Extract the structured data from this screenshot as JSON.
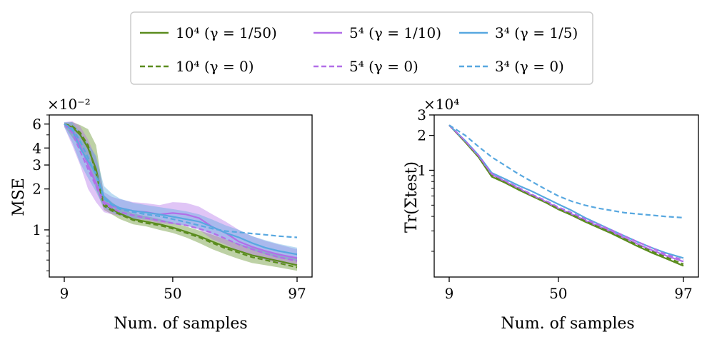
{
  "colors": {
    "green": "#5b8c1f",
    "purple": "#b26ee8",
    "blue": "#58a8e0"
  },
  "legend": {
    "items": [
      {
        "label": "10⁴ (γ = 1/50)",
        "color": "green",
        "dash": false
      },
      {
        "label": "5⁴ (γ = 1/10)",
        "color": "purple",
        "dash": false
      },
      {
        "label": "3⁴ (γ = 1/5)",
        "color": "blue",
        "dash": false
      },
      {
        "label": "10⁴ (γ = 0)",
        "color": "green",
        "dash": true
      },
      {
        "label": "5⁴ (γ = 0)",
        "color": "purple",
        "dash": true
      },
      {
        "label": "3⁴ (γ = 0)",
        "color": "blue",
        "dash": true
      }
    ]
  },
  "chart_data": [
    {
      "type": "line",
      "ylabel": "MSE",
      "xlabel": "Num. of samples",
      "y_multiplier": "×10⁻²",
      "yscale": "log",
      "xlim": [
        9,
        97
      ],
      "ylim": [
        0.45,
        7.0
      ],
      "xticks": [
        {
          "value": 9,
          "label": "9"
        },
        {
          "value": 50,
          "label": "50"
        },
        {
          "value": 97,
          "label": "97"
        }
      ],
      "yticks": [
        {
          "value": 1,
          "label": "1"
        },
        {
          "value": 2,
          "label": "2"
        },
        {
          "value": 3,
          "label": "3"
        },
        {
          "value": 4,
          "label": "4"
        },
        {
          "value": 6,
          "label": "6"
        }
      ],
      "yminor": [
        0.5,
        0.6,
        0.7,
        0.8,
        0.9,
        5,
        7
      ],
      "x": [
        9,
        12,
        15,
        18,
        21,
        24,
        27,
        30,
        35,
        40,
        45,
        50,
        55,
        60,
        65,
        70,
        75,
        80,
        85,
        90,
        97
      ],
      "series": [
        {
          "legend_index": 0,
          "color": "green",
          "dash": false,
          "values": [
            6.0,
            5.7,
            5.0,
            4.0,
            2.8,
            1.55,
            1.42,
            1.32,
            1.2,
            1.15,
            1.1,
            1.04,
            0.97,
            0.9,
            0.82,
            0.75,
            0.7,
            0.65,
            0.62,
            0.59,
            0.55
          ],
          "band_lower": [
            5.8,
            4.8,
            4.0,
            3.0,
            2.0,
            1.4,
            1.3,
            1.2,
            1.1,
            1.06,
            1.0,
            0.95,
            0.88,
            0.8,
            0.72,
            0.66,
            0.61,
            0.57,
            0.55,
            0.53,
            0.5
          ],
          "band_upper": [
            6.1,
            6.2,
            5.9,
            5.5,
            4.2,
            1.8,
            1.6,
            1.45,
            1.32,
            1.26,
            1.2,
            1.13,
            1.06,
            0.99,
            0.92,
            0.85,
            0.79,
            0.74,
            0.7,
            0.67,
            0.62
          ]
        },
        {
          "legend_index": 1,
          "color": "purple",
          "dash": false,
          "values": [
            6.0,
            5.5,
            4.2,
            3.0,
            2.2,
            1.6,
            1.5,
            1.45,
            1.38,
            1.35,
            1.3,
            1.33,
            1.3,
            1.22,
            1.05,
            0.95,
            0.82,
            0.75,
            0.7,
            0.66,
            0.62
          ],
          "band_lower": [
            5.7,
            4.2,
            3.0,
            2.0,
            1.6,
            1.35,
            1.3,
            1.27,
            1.2,
            1.18,
            1.12,
            1.1,
            1.08,
            1.0,
            0.85,
            0.78,
            0.7,
            0.65,
            0.6,
            0.57,
            0.55
          ],
          "band_upper": [
            6.2,
            6.3,
            5.8,
            4.6,
            3.4,
            1.9,
            1.75,
            1.68,
            1.6,
            1.57,
            1.52,
            1.6,
            1.58,
            1.48,
            1.3,
            1.15,
            1.0,
            0.9,
            0.83,
            0.78,
            0.72
          ]
        },
        {
          "legend_index": 2,
          "color": "blue",
          "dash": false,
          "values": [
            6.0,
            5.4,
            4.0,
            3.2,
            2.6,
            1.75,
            1.55,
            1.45,
            1.38,
            1.34,
            1.3,
            1.25,
            1.2,
            1.15,
            1.05,
            0.95,
            0.88,
            0.8,
            0.74,
            0.7,
            0.66
          ],
          "band_lower": [
            5.7,
            4.4,
            3.1,
            2.4,
            1.9,
            1.45,
            1.35,
            1.28,
            1.22,
            1.2,
            1.16,
            1.12,
            1.07,
            1.02,
            0.93,
            0.85,
            0.78,
            0.71,
            0.66,
            0.62,
            0.59
          ],
          "band_upper": [
            6.2,
            6.2,
            5.2,
            4.3,
            3.5,
            2.1,
            1.85,
            1.7,
            1.58,
            1.52,
            1.47,
            1.42,
            1.37,
            1.3,
            1.19,
            1.08,
            1.0,
            0.9,
            0.84,
            0.79,
            0.74
          ]
        },
        {
          "legend_index": 3,
          "color": "green",
          "dash": true,
          "values": [
            6.0,
            5.8,
            5.2,
            4.2,
            2.6,
            1.5,
            1.38,
            1.3,
            1.18,
            1.12,
            1.08,
            1.02,
            0.95,
            0.88,
            0.8,
            0.73,
            0.68,
            0.63,
            0.6,
            0.57,
            0.53
          ]
        },
        {
          "legend_index": 4,
          "color": "purple",
          "dash": true,
          "values": [
            6.0,
            5.2,
            3.8,
            2.8,
            2.1,
            1.55,
            1.45,
            1.35,
            1.28,
            1.22,
            1.17,
            1.12,
            1.08,
            1.02,
            0.95,
            0.86,
            0.78,
            0.72,
            0.67,
            0.63,
            0.59
          ]
        },
        {
          "legend_index": 5,
          "color": "blue",
          "dash": true,
          "values": [
            6.0,
            5.6,
            4.5,
            3.4,
            2.5,
            1.7,
            1.52,
            1.42,
            1.35,
            1.3,
            1.26,
            1.2,
            1.14,
            1.08,
            1.02,
            0.98,
            0.96,
            0.94,
            0.92,
            0.9,
            0.88
          ]
        }
      ]
    },
    {
      "type": "line",
      "ylabel": "Tr(Σtest)",
      "xlabel": "Num. of samples",
      "y_multiplier": "×10⁴",
      "yscale": "log",
      "xlim": [
        9,
        97
      ],
      "ylim": [
        0.12,
        3.0
      ],
      "xticks": [
        {
          "value": 9,
          "label": "9"
        },
        {
          "value": 50,
          "label": "50"
        },
        {
          "value": 97,
          "label": "97"
        }
      ],
      "yticks": [
        {
          "value": 1,
          "label": "1"
        },
        {
          "value": 2,
          "label": "2"
        },
        {
          "value": 3,
          "label": "3"
        }
      ],
      "yminor": [
        0.2,
        0.3,
        0.4,
        0.5,
        0.6,
        0.7,
        0.8,
        0.9
      ],
      "x": [
        9,
        15,
        20,
        25,
        30,
        35,
        40,
        45,
        50,
        55,
        60,
        65,
        70,
        75,
        80,
        85,
        90,
        97
      ],
      "series": [
        {
          "legend_index": 0,
          "color": "green",
          "dash": false,
          "values": [
            2.45,
            1.75,
            1.3,
            0.88,
            0.78,
            0.68,
            0.6,
            0.53,
            0.46,
            0.41,
            0.36,
            0.32,
            0.285,
            0.25,
            0.22,
            0.195,
            0.175,
            0.15
          ]
        },
        {
          "legend_index": 1,
          "color": "purple",
          "dash": false,
          "values": [
            2.45,
            1.78,
            1.33,
            0.92,
            0.8,
            0.7,
            0.61,
            0.54,
            0.47,
            0.42,
            0.37,
            0.33,
            0.295,
            0.26,
            0.23,
            0.205,
            0.185,
            0.163
          ]
        },
        {
          "legend_index": 2,
          "color": "blue",
          "dash": false,
          "values": [
            2.45,
            1.8,
            1.35,
            0.95,
            0.84,
            0.74,
            0.66,
            0.58,
            0.51,
            0.45,
            0.39,
            0.345,
            0.305,
            0.27,
            0.24,
            0.215,
            0.195,
            0.175
          ]
        },
        {
          "legend_index": 3,
          "color": "green",
          "dash": true,
          "values": [
            2.45,
            1.76,
            1.31,
            0.9,
            0.79,
            0.69,
            0.605,
            0.535,
            0.465,
            0.415,
            0.365,
            0.325,
            0.29,
            0.255,
            0.225,
            0.2,
            0.18,
            0.155
          ]
        },
        {
          "legend_index": 4,
          "color": "purple",
          "dash": true,
          "values": [
            2.45,
            1.79,
            1.34,
            0.93,
            0.81,
            0.71,
            0.62,
            0.55,
            0.48,
            0.43,
            0.38,
            0.34,
            0.305,
            0.27,
            0.24,
            0.215,
            0.19,
            0.168
          ]
        },
        {
          "legend_index": 5,
          "color": "blue",
          "dash": true,
          "values": [
            2.45,
            2.0,
            1.6,
            1.3,
            1.1,
            0.93,
            0.8,
            0.69,
            0.6,
            0.54,
            0.5,
            0.47,
            0.45,
            0.43,
            0.42,
            0.41,
            0.4,
            0.39
          ]
        }
      ]
    }
  ]
}
